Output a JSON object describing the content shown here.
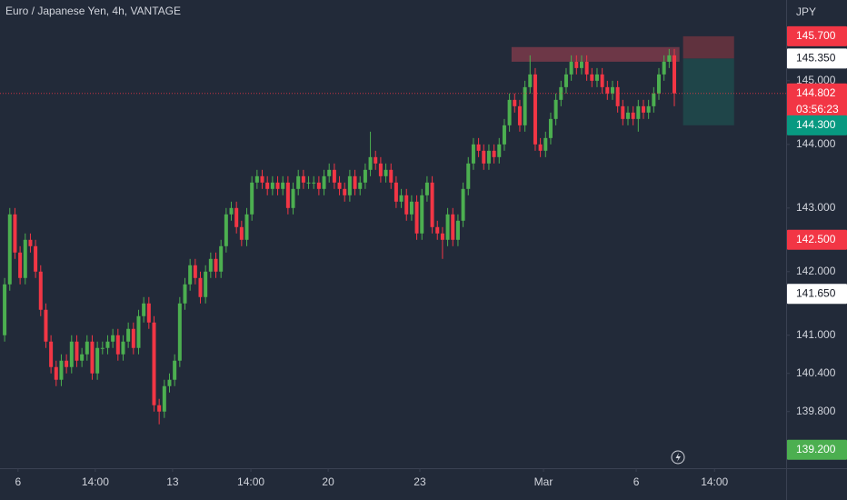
{
  "chart_data": {
    "type": "candlestick",
    "title": "Euro / Japanese Yen, 4h, VANTAGE",
    "currency": "JPY",
    "up_color": "#4caf50",
    "down_color": "#f23645",
    "grid": false,
    "ylim": [
      138.91,
      146.27
    ],
    "xlim": [
      -0.9,
      151.7
    ],
    "yticks": [
      {
        "value": 139.8,
        "label": "139.800"
      },
      {
        "value": 140.4,
        "label": "140.400"
      },
      {
        "value": 141,
        "label": "141.000"
      },
      {
        "value": 142,
        "label": "142.000"
      },
      {
        "value": 143,
        "label": "143.000"
      },
      {
        "value": 144,
        "label": "144.000"
      },
      {
        "value": 145,
        "label": "145.000"
      }
    ],
    "xticks": [
      {
        "value": 2.6,
        "label": "6"
      },
      {
        "value": 17.6,
        "label": "14:00"
      },
      {
        "value": 32.6,
        "label": "13"
      },
      {
        "value": 47.8,
        "label": "14:00"
      },
      {
        "value": 62.8,
        "label": "20"
      },
      {
        "value": 80.6,
        "label": "23"
      },
      {
        "value": 104.6,
        "label": "Mar"
      },
      {
        "value": 122.6,
        "label": "6"
      },
      {
        "value": 137.8,
        "label": "14:00"
      }
    ],
    "open": [
      141.0,
      141.8,
      142.9,
      142.3,
      141.9,
      142.5,
      142.4,
      142.0,
      141.4,
      140.9,
      140.5,
      140.3,
      140.6,
      140.5,
      140.9,
      140.6,
      140.7,
      140.9,
      140.4,
      140.8,
      140.8,
      140.9,
      141.0,
      140.7,
      140.9,
      141.1,
      140.8,
      141.3,
      141.5,
      141.2,
      139.9,
      139.8,
      140.2,
      140.3,
      140.6,
      141.5,
      141.8,
      142.1,
      141.9,
      141.6,
      142.0,
      142.2,
      142.0,
      142.4,
      142.9,
      143.0,
      142.7,
      142.5,
      142.9,
      143.4,
      143.5,
      143.4,
      143.3,
      143.4,
      143.3,
      143.4,
      143.0,
      143.3,
      143.5,
      143.4,
      143.4,
      143.4,
      143.3,
      143.5,
      143.6,
      143.4,
      143.3,
      143.2,
      143.5,
      143.3,
      143.4,
      143.6,
      143.8,
      143.7,
      143.5,
      143.6,
      143.4,
      143.1,
      143.2,
      142.9,
      143.1,
      142.6,
      143.2,
      143.4,
      142.7,
      142.6,
      142.5,
      142.9,
      142.5,
      142.8,
      143.3,
      143.7,
      144.0,
      143.9,
      143.7,
      143.9,
      143.8,
      144.0,
      144.3,
      144.7,
      144.6,
      144.3,
      144.9,
      145.1,
      144.0,
      143.9,
      144.1,
      144.4,
      144.7,
      144.9,
      145.1,
      145.3,
      145.2,
      145.3,
      145.1,
      145.0,
      145.1,
      144.9,
      144.8,
      144.9,
      144.6,
      144.4,
      144.5,
      144.4,
      144.6,
      144.5,
      144.6,
      144.8,
      145.1,
      145.3,
      145.4
    ],
    "high": [
      141.9,
      143.0,
      143.0,
      142.4,
      142.6,
      142.6,
      142.5,
      142.1,
      141.5,
      141.0,
      140.6,
      140.7,
      140.7,
      141.0,
      141.0,
      140.8,
      141.0,
      141.0,
      140.9,
      140.9,
      141.0,
      141.1,
      141.1,
      141.0,
      141.2,
      141.2,
      141.4,
      141.6,
      141.6,
      141.3,
      140.0,
      140.3,
      140.4,
      140.7,
      141.6,
      141.9,
      142.2,
      142.2,
      142.0,
      142.1,
      142.3,
      142.3,
      142.5,
      143.0,
      143.1,
      143.1,
      142.8,
      143.0,
      143.5,
      143.6,
      143.6,
      143.5,
      143.5,
      143.5,
      143.5,
      143.5,
      143.4,
      143.6,
      143.6,
      143.5,
      143.5,
      143.5,
      143.6,
      143.7,
      143.7,
      143.5,
      143.4,
      143.6,
      143.6,
      143.5,
      143.7,
      144.2,
      143.9,
      143.8,
      143.7,
      143.7,
      143.5,
      143.3,
      143.3,
      143.2,
      143.2,
      143.3,
      143.5,
      143.5,
      142.8,
      142.7,
      143.0,
      143.0,
      142.9,
      143.4,
      143.8,
      144.1,
      144.1,
      144.0,
      144.0,
      144.0,
      144.1,
      144.4,
      144.8,
      144.8,
      144.7,
      145.0,
      145.4,
      145.2,
      144.1,
      144.2,
      144.5,
      144.8,
      145.0,
      145.2,
      145.4,
      145.4,
      145.4,
      145.4,
      145.2,
      145.2,
      145.2,
      145.0,
      145.0,
      145.0,
      144.7,
      144.6,
      144.6,
      144.7,
      144.7,
      144.7,
      144.9,
      145.2,
      145.4,
      145.5,
      145.5
    ],
    "low": [
      140.9,
      141.7,
      142.2,
      141.8,
      141.8,
      142.3,
      141.9,
      141.3,
      140.8,
      140.4,
      140.2,
      140.2,
      140.4,
      140.4,
      140.5,
      140.5,
      140.6,
      140.3,
      140.3,
      140.7,
      140.7,
      140.8,
      140.6,
      140.6,
      140.8,
      140.7,
      140.7,
      141.2,
      141.1,
      139.8,
      139.6,
      139.7,
      140.1,
      140.2,
      140.5,
      141.4,
      141.7,
      141.8,
      141.5,
      141.5,
      141.9,
      141.9,
      141.9,
      142.3,
      142.8,
      142.6,
      142.4,
      142.4,
      142.8,
      143.3,
      143.3,
      143.2,
      143.2,
      143.2,
      143.2,
      142.9,
      142.9,
      143.2,
      143.3,
      143.3,
      143.3,
      143.2,
      143.2,
      143.4,
      143.3,
      143.2,
      143.1,
      143.1,
      143.2,
      143.2,
      143.3,
      143.5,
      143.6,
      143.4,
      143.4,
      143.3,
      143.0,
      143.0,
      142.8,
      142.8,
      142.5,
      142.5,
      143.1,
      142.6,
      142.5,
      142.2,
      142.4,
      142.4,
      142.4,
      142.7,
      143.2,
      143.6,
      143.8,
      143.6,
      143.6,
      143.7,
      143.7,
      143.9,
      144.2,
      144.5,
      144.2,
      144.2,
      144.8,
      143.9,
      143.8,
      143.8,
      144.0,
      144.3,
      144.6,
      144.8,
      145.0,
      145.1,
      145.1,
      145.0,
      144.9,
      144.9,
      144.8,
      144.7,
      144.7,
      144.5,
      144.3,
      144.3,
      144.3,
      144.2,
      144.4,
      144.4,
      144.5,
      144.7,
      145.0,
      145.2,
      144.6
    ],
    "close": [
      141.8,
      142.9,
      142.3,
      141.9,
      142.5,
      142.4,
      142.0,
      141.4,
      140.9,
      140.5,
      140.3,
      140.6,
      140.5,
      140.9,
      140.6,
      140.7,
      140.9,
      140.4,
      140.8,
      140.8,
      140.9,
      141.0,
      140.7,
      140.9,
      141.1,
      140.8,
      141.3,
      141.5,
      141.2,
      139.9,
      139.8,
      140.2,
      140.3,
      140.6,
      141.5,
      141.8,
      142.1,
      141.9,
      141.6,
      142.0,
      142.2,
      142.0,
      142.4,
      142.9,
      143.0,
      142.7,
      142.5,
      142.9,
      143.4,
      143.5,
      143.4,
      143.3,
      143.4,
      143.3,
      143.4,
      143.0,
      143.3,
      143.5,
      143.4,
      143.4,
      143.4,
      143.3,
      143.5,
      143.6,
      143.4,
      143.3,
      143.2,
      143.5,
      143.3,
      143.4,
      143.6,
      143.8,
      143.7,
      143.5,
      143.6,
      143.4,
      143.1,
      143.2,
      142.9,
      143.1,
      142.6,
      143.2,
      143.4,
      142.7,
      142.6,
      142.5,
      142.9,
      142.5,
      142.8,
      143.3,
      143.7,
      144.0,
      143.9,
      143.7,
      143.9,
      143.8,
      144.0,
      144.3,
      144.7,
      144.6,
      144.3,
      144.9,
      145.1,
      144.0,
      143.9,
      144.1,
      144.4,
      144.7,
      144.9,
      145.1,
      145.3,
      145.2,
      145.3,
      145.1,
      145.0,
      145.1,
      144.9,
      144.8,
      144.9,
      144.6,
      144.4,
      144.5,
      144.4,
      144.6,
      144.5,
      144.6,
      144.8,
      145.1,
      145.3,
      145.4,
      144.802
    ],
    "zones": [
      {
        "x0": 98.4,
        "x1": 131.0,
        "y0": 145.3,
        "y1": 145.53,
        "color": "#7a3a4a"
      },
      {
        "x0": 131.7,
        "x1": 141.6,
        "y0": 145.35,
        "y1": 145.7,
        "color": "#6b3440"
      },
      {
        "x0": 131.7,
        "x1": 141.6,
        "y0": 144.3,
        "y1": 145.35,
        "color": "#1f4a4c"
      }
    ],
    "price_line": {
      "value": 144.802,
      "color": "#f23645"
    },
    "price_labels": [
      {
        "value": 145.7,
        "label": "145.700",
        "color": "#f23645"
      },
      {
        "value": 145.35,
        "label": "145.350",
        "color": "#ffffff"
      },
      {
        "value": 144.802,
        "label": "144.802",
        "color": "#f23645",
        "countdown": "03:56:23"
      },
      {
        "value": 144.3,
        "label": "144.300",
        "color": "#089981"
      },
      {
        "value": 142.5,
        "label": "142.500",
        "color": "#f23645"
      },
      {
        "value": 141.65,
        "label": "141.650",
        "color": "#ffffff"
      },
      {
        "value": 139.2,
        "label": "139.200",
        "color": "#4caf50"
      }
    ]
  }
}
